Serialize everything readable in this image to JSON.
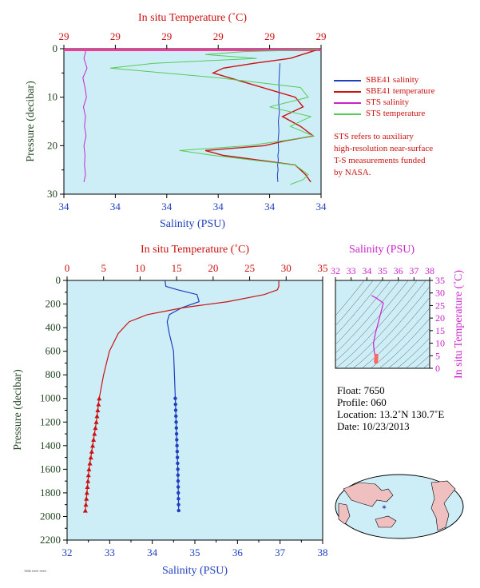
{
  "upper_chart": {
    "top_axis_label": "In situ Temperature (˚C)",
    "top_ticks": [
      "29",
      "29",
      "29",
      "29",
      "29",
      "29"
    ],
    "bottom_axis_label": "Salinity (PSU)",
    "bottom_ticks": [
      "34",
      "34",
      "34",
      "34",
      "34",
      "34"
    ],
    "y_axis_label": "Pressure (decibar)",
    "y_ticks": [
      "0",
      "10",
      "20",
      "30"
    ],
    "legend": [
      {
        "label": "SBE41 salinity",
        "color": "#1f3fbf"
      },
      {
        "label": "SBE41 temperature",
        "color": "#cc1111"
      },
      {
        "label": "STS salinity",
        "color": "#cc22cc"
      },
      {
        "label": "STS temperature",
        "color": "#55cc55"
      }
    ],
    "note": [
      "STS refers to auxiliary",
      "high-resolution near-surface",
      "T-S measurements funded",
      "by NASA."
    ]
  },
  "lower_chart": {
    "top_axis_label": "In situ Temperature (˚C)",
    "top_ticks": [
      "0",
      "5",
      "10",
      "15",
      "20",
      "25",
      "30",
      "35"
    ],
    "bottom_axis_label": "Salinity (PSU)",
    "bottom_ticks": [
      "32",
      "33",
      "34",
      "35",
      "36",
      "37",
      "38"
    ],
    "y_axis_label": "Pressure (decibar)",
    "y_ticks": [
      "0",
      "200",
      "400",
      "600",
      "800",
      "1000",
      "1200",
      "1400",
      "1600",
      "1800",
      "2000",
      "2200"
    ]
  },
  "ts_diagram": {
    "top_axis_label": "Salinity (PSU)",
    "top_ticks": [
      "32",
      "33",
      "34",
      "35",
      "36",
      "37",
      "38"
    ],
    "right_axis_label": "In situ Temperature (˚C)",
    "right_ticks": [
      "0",
      "5",
      "10",
      "15",
      "20",
      "25",
      "30",
      "35"
    ]
  },
  "info": {
    "float": "Float:  7650",
    "profile": "Profile:  060",
    "location": "Location:  13.2˚N  130.7˚E",
    "date": "Date:  10/23/2013"
  },
  "chart_data": [
    {
      "type": "line",
      "name": "upper",
      "xlabel": "Salinity (PSU)",
      "x2label": "In situ Temperature (˚C)",
      "ylabel": "Pressure (decibar)",
      "ylim": [
        30,
        0
      ],
      "grid": false,
      "legend_position": "right",
      "series": [
        {
          "name": "SBE41 salinity",
          "color": "#1f3fbf",
          "x_frac": [
            0.84,
            0.838,
            0.836,
            0.837,
            0.835,
            0.838,
            0.834,
            0.836,
            0.833,
            0.835,
            0.832,
            0.834,
            0.831,
            0.833,
            0.83,
            0.832
          ],
          "y": [
            3,
            5,
            7,
            9,
            11,
            13,
            15,
            17,
            19,
            21,
            22,
            23,
            24,
            25,
            26,
            27.5
          ]
        },
        {
          "name": "SBE41 temperature",
          "color": "#cc1111",
          "x_frac": [
            0.98,
            0.95,
            0.88,
            0.74,
            0.62,
            0.58,
            0.9,
            0.93,
            0.85,
            0.92,
            0.97,
            0.86,
            0.78,
            0.55,
            0.62,
            0.9,
            0.94,
            0.96
          ],
          "y": [
            0.3,
            0.8,
            2,
            3,
            4,
            5,
            10,
            12,
            14,
            16,
            18,
            19,
            20,
            21,
            22,
            24,
            26,
            27.5
          ]
        },
        {
          "name": "STS salinity",
          "color": "#cc22cc",
          "x_frac": [
            0.085,
            0.078,
            0.09,
            0.074,
            0.082,
            0.088,
            0.076,
            0.084,
            0.08,
            0.086,
            0.078,
            0.082,
            0.08,
            0.084,
            0.078
          ],
          "y": [
            0.5,
            2,
            4,
            6,
            8,
            10,
            12,
            14,
            16,
            18,
            20,
            22,
            24,
            26,
            27.5
          ]
        },
        {
          "name": "STS temperature",
          "color": "#55cc55",
          "x_frac": [
            0.99,
            0.7,
            0.55,
            0.75,
            0.35,
            0.18,
            0.6,
            0.92,
            0.95,
            0.8,
            0.96,
            0.88,
            0.97,
            0.85,
            0.72,
            0.45,
            0.58,
            0.9,
            0.95,
            0.93,
            0.88
          ],
          "y": [
            0.2,
            0.6,
            1.2,
            2,
            3,
            4,
            6,
            8,
            10,
            12,
            14,
            16,
            18,
            19,
            20,
            21,
            22,
            24,
            26,
            27,
            28
          ]
        }
      ]
    },
    {
      "type": "line",
      "name": "lower",
      "xlabel": "Salinity (PSU)",
      "xlim": [
        32,
        38
      ],
      "x2label": "In situ Temperature (˚C)",
      "x2lim": [
        0,
        35
      ],
      "ylabel": "Pressure (decibar)",
      "ylim": [
        2200,
        0
      ],
      "grid": false,
      "series": [
        {
          "name": "Salinity",
          "color": "#1f3fbf",
          "x": [
            34.3,
            34.32,
            34.6,
            35.05,
            35.1,
            34.7,
            34.4,
            34.35,
            34.4,
            34.5,
            34.52,
            34.54,
            34.56,
            34.58,
            34.6,
            34.62
          ],
          "y": [
            5,
            50,
            80,
            120,
            180,
            230,
            290,
            350,
            450,
            600,
            800,
            1000,
            1200,
            1400,
            1600,
            1950
          ]
        },
        {
          "name": "Temperature",
          "color": "#cc1111",
          "x": [
            29.0,
            29.0,
            28.8,
            27.0,
            22.0,
            16.0,
            11.0,
            8.5,
            7.0,
            5.8,
            5.0,
            4.4,
            4.0,
            3.5,
            3.0,
            2.5
          ],
          "y": [
            5,
            50,
            80,
            120,
            180,
            230,
            290,
            350,
            450,
            600,
            800,
            1000,
            1200,
            1400,
            1600,
            1950
          ]
        }
      ]
    },
    {
      "type": "scatter",
      "name": "ts",
      "xlabel": "Salinity (PSU)",
      "xlim": [
        32,
        38
      ],
      "ylabel": "In situ Temperature (˚C)",
      "ylim": [
        0,
        35
      ],
      "series": [
        {
          "name": "T-S",
          "color": "#cc22cc",
          "x": [
            34.3,
            34.6,
            35.05,
            34.8,
            34.55,
            34.42,
            34.45,
            34.52,
            34.58,
            34.6
          ],
          "y": [
            29,
            28,
            26,
            20,
            14,
            10,
            7.5,
            5,
            3,
            2.5
          ]
        }
      ]
    }
  ]
}
